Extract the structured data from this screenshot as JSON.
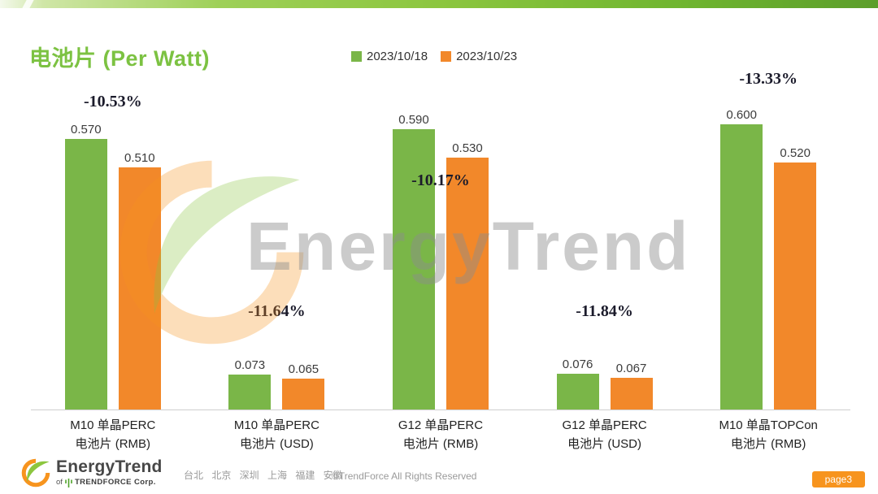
{
  "slide": {
    "title": "电池片 (Per Watt)",
    "page_badge": "page3"
  },
  "colors": {
    "bar_green": "#7AB648",
    "bar_orange": "#F2882A",
    "title_green": "#7CC242",
    "badge_orange": "#F7941E"
  },
  "legend": {
    "series1": "2023/10/18",
    "series2": "2023/10/23"
  },
  "chart_data": {
    "type": "bar",
    "title": "电池片 (Per Watt)",
    "series_names": [
      "2023/10/18",
      "2023/10/23"
    ],
    "categories": [
      "M10 单晶PERC 电池片 (RMB)",
      "M10 单晶PERC 电池片 (USD)",
      "G12 单晶PERC 电池片 (RMB)",
      "G12 单晶PERC 电池片 (USD)",
      "M10 单晶TOPCon 电池片 (RMB)"
    ],
    "ylim": [
      0,
      0.65
    ],
    "grid": false,
    "legend_position": "top-center",
    "groups": [
      {
        "label": "M10 单晶PERC\n电池片 (RMB)",
        "v1": 0.57,
        "v1_label": "0.570",
        "v2": 0.51,
        "v2_label": "0.510",
        "pct": "-10.53%"
      },
      {
        "label": "M10 单晶PERC\n电池片 (USD)",
        "v1": 0.073,
        "v1_label": "0.073",
        "v2": 0.065,
        "v2_label": "0.065",
        "pct": "-11.64%"
      },
      {
        "label": "G12 单晶PERC\n电池片 (RMB)",
        "v1": 0.59,
        "v1_label": "0.590",
        "v2": 0.53,
        "v2_label": "0.530",
        "pct": "-10.17%"
      },
      {
        "label": "G12 单晶PERC\n电池片 (USD)",
        "v1": 0.076,
        "v1_label": "0.076",
        "v2": 0.067,
        "v2_label": "0.067",
        "pct": "-11.84%"
      },
      {
        "label": "M10 单晶TOPCon\n电池片 (RMB)",
        "v1": 0.6,
        "v1_label": "0.600",
        "v2": 0.52,
        "v2_label": "0.520",
        "pct": "-13.33%"
      }
    ]
  },
  "watermark": {
    "text": "EnergyTrend"
  },
  "footer": {
    "brand": "EnergyTrend",
    "sub_of": "of",
    "sub_company": "TRENDFORCE Corp.",
    "cities": "台北 北京 深圳 上海 福建 安徽",
    "copyright": "©TrendForce All Rights Reserved"
  }
}
